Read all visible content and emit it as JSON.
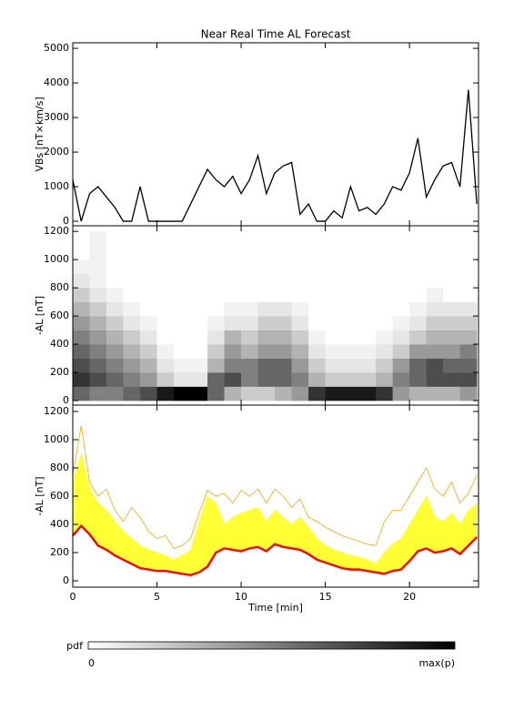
{
  "chart_data": [
    {
      "type": "line",
      "title": "Near Real Time AL Forecast",
      "y_label": "VBs [nT×km/s]",
      "x": [
        0,
        0.5,
        1,
        1.5,
        2,
        2.5,
        3,
        3.5,
        4,
        4.5,
        5,
        5.5,
        6,
        6.5,
        7,
        7.5,
        8,
        8.5,
        9,
        9.5,
        10,
        10.5,
        11,
        11.5,
        12,
        12.5,
        13,
        13.5,
        14,
        14.5,
        15,
        15.5,
        16,
        16.5,
        17,
        17.5,
        18,
        18.5,
        19,
        19.5,
        20,
        20.5,
        21,
        21.5,
        22,
        22.5,
        23,
        23.5,
        24
      ],
      "series": [
        {
          "color": "#000000",
          "values": [
            1200,
            0,
            800,
            1000,
            700,
            400,
            0,
            0,
            1000,
            0,
            0,
            0,
            0,
            0,
            500,
            1000,
            1500,
            1200,
            1000,
            1300,
            800,
            1200,
            1900,
            800,
            1400,
            1600,
            1700,
            200,
            500,
            0,
            0,
            300,
            100,
            1000,
            300,
            400,
            200,
            500,
            1000,
            900,
            1400,
            2400,
            700,
            1200,
            1600,
            1700,
            1000,
            3800,
            500
          ]
        }
      ],
      "xlim": [
        0,
        24.1
      ],
      "ylim": [
        -130,
        5160
      ],
      "yticks": [
        0,
        1000,
        2000,
        3000,
        4000,
        5000
      ]
    },
    {
      "type": "heatmap",
      "y_label": "-AL [nT]",
      "x_bins": [
        0,
        1,
        2,
        3,
        4,
        5,
        6,
        7,
        8,
        9,
        10,
        11,
        12,
        13,
        14,
        15,
        16,
        17,
        18,
        19,
        20,
        21,
        22,
        23,
        24
      ],
      "y_bins": [
        0,
        100,
        200,
        300,
        400,
        500,
        600,
        700,
        800,
        900,
        1000,
        1100,
        1200
      ],
      "values": [
        [
          0.6,
          0.5,
          0.5,
          0.6,
          0.7,
          0.9,
          1.0,
          1.0,
          0.6,
          0.3,
          0.2,
          0.2,
          0.3,
          0.4,
          0.8,
          0.9,
          0.9,
          0.9,
          0.8,
          0.4,
          0.3,
          0.3,
          0.3,
          0.4
        ],
        [
          0.8,
          0.7,
          0.6,
          0.5,
          0.4,
          0.2,
          0.1,
          0.1,
          0.6,
          0.7,
          0.5,
          0.6,
          0.6,
          0.5,
          0.3,
          0.2,
          0.2,
          0.2,
          0.3,
          0.5,
          0.6,
          0.7,
          0.7,
          0.7
        ],
        [
          0.7,
          0.6,
          0.5,
          0.4,
          0.3,
          0.1,
          0.05,
          0.05,
          0.3,
          0.5,
          0.5,
          0.6,
          0.6,
          0.4,
          0.2,
          0.1,
          0.1,
          0.1,
          0.2,
          0.4,
          0.6,
          0.7,
          0.6,
          0.6
        ],
        [
          0.6,
          0.5,
          0.4,
          0.3,
          0.2,
          0.05,
          0,
          0,
          0.2,
          0.4,
          0.3,
          0.4,
          0.4,
          0.3,
          0.1,
          0.05,
          0.05,
          0.05,
          0.1,
          0.2,
          0.4,
          0.4,
          0.4,
          0.5
        ],
        [
          0.5,
          0.4,
          0.3,
          0.2,
          0.1,
          0,
          0,
          0,
          0.1,
          0.3,
          0.2,
          0.3,
          0.3,
          0.2,
          0.05,
          0,
          0,
          0,
          0.05,
          0.1,
          0.2,
          0.3,
          0.3,
          0.3
        ],
        [
          0.4,
          0.3,
          0.2,
          0.1,
          0.05,
          0,
          0,
          0,
          0.05,
          0.1,
          0.1,
          0.2,
          0.2,
          0.1,
          0,
          0,
          0,
          0,
          0,
          0.05,
          0.1,
          0.2,
          0.2,
          0.2
        ],
        [
          0.3,
          0.2,
          0.1,
          0.05,
          0,
          0,
          0,
          0,
          0,
          0.05,
          0.05,
          0.1,
          0.1,
          0.05,
          0,
          0,
          0,
          0,
          0,
          0,
          0.05,
          0.1,
          0.1,
          0.1
        ],
        [
          0.2,
          0.1,
          0.05,
          0,
          0,
          0,
          0,
          0,
          0,
          0,
          0,
          0,
          0,
          0,
          0,
          0,
          0,
          0,
          0,
          0,
          0,
          0.05,
          0,
          0
        ],
        [
          0.1,
          0.05,
          0,
          0,
          0,
          0,
          0,
          0,
          0,
          0,
          0,
          0,
          0,
          0,
          0,
          0,
          0,
          0,
          0,
          0,
          0,
          0,
          0,
          0
        ],
        [
          0.05,
          0.05,
          0,
          0,
          0,
          0,
          0,
          0,
          0,
          0,
          0,
          0,
          0,
          0,
          0,
          0,
          0,
          0,
          0,
          0,
          0,
          0,
          0,
          0
        ],
        [
          0,
          0.05,
          0,
          0,
          0,
          0,
          0,
          0,
          0,
          0,
          0,
          0,
          0,
          0,
          0,
          0,
          0,
          0,
          0,
          0,
          0,
          0,
          0,
          0
        ],
        [
          0,
          0.05,
          0,
          0,
          0,
          0,
          0,
          0,
          0,
          0,
          0,
          0,
          0,
          0,
          0,
          0,
          0,
          0,
          0,
          0,
          0,
          0,
          0,
          0
        ]
      ],
      "xlim": [
        0,
        24.1
      ],
      "ylim": [
        -32,
        1240
      ],
      "yticks": [
        0,
        200,
        400,
        600,
        800,
        1000,
        1200
      ],
      "colorbar_label": "pdf",
      "colorbar_ticks": [
        0,
        {
          "value": 1,
          "label": "max(p)"
        }
      ]
    },
    {
      "type": "band",
      "y_label": "-AL [nT]",
      "x_label": "Time [min]",
      "x": [
        0,
        0.5,
        1,
        1.5,
        2,
        2.5,
        3,
        3.5,
        4,
        4.5,
        5,
        5.5,
        6,
        6.5,
        7,
        7.5,
        8,
        8.5,
        9,
        9.5,
        10,
        10.5,
        11,
        11.5,
        12,
        12.5,
        13,
        13.5,
        14,
        14.5,
        15,
        15.5,
        16,
        16.5,
        17,
        17.5,
        18,
        18.5,
        19,
        19.5,
        20,
        20.5,
        21,
        21.5,
        22,
        22.5,
        23,
        23.5,
        24
      ],
      "series": [
        {
          "color": "#ffa500",
          "style": "line",
          "values": [
            750,
            1100,
            700,
            600,
            650,
            500,
            420,
            520,
            450,
            350,
            300,
            320,
            230,
            250,
            300,
            480,
            640,
            600,
            620,
            550,
            640,
            600,
            650,
            550,
            650,
            600,
            520,
            580,
            450,
            420,
            380,
            350,
            320,
            300,
            280,
            260,
            250,
            420,
            500,
            500,
            600,
            700,
            800,
            650,
            600,
            700,
            550,
            620,
            750
          ]
        },
        {
          "color": "#ffff33",
          "style": "area",
          "values": [
            700,
            900,
            650,
            550,
            500,
            420,
            350,
            300,
            250,
            220,
            200,
            180,
            150,
            180,
            220,
            420,
            600,
            550,
            400,
            450,
            480,
            500,
            520,
            420,
            500,
            450,
            400,
            450,
            380,
            300,
            250,
            220,
            200,
            180,
            170,
            150,
            120,
            200,
            260,
            300,
            400,
            500,
            600,
            450,
            420,
            480,
            400,
            500,
            550
          ]
        },
        {
          "color": "#ff0000",
          "style": "floor",
          "values": [
            320,
            390,
            330,
            250,
            220,
            180,
            150,
            120,
            90,
            80,
            70,
            70,
            60,
            50,
            40,
            60,
            100,
            200,
            230,
            220,
            210,
            230,
            240,
            210,
            260,
            240,
            230,
            220,
            190,
            150,
            130,
            110,
            90,
            80,
            80,
            70,
            60,
            50,
            70,
            80,
            140,
            210,
            230,
            200,
            210,
            230,
            190,
            250,
            310
          ]
        }
      ],
      "xlim": [
        0,
        24.1
      ],
      "ylim": [
        -45,
        1245
      ],
      "yticks": [
        0,
        200,
        400,
        600,
        800,
        1000,
        1200
      ],
      "xticks": [
        0,
        5,
        10,
        15,
        20
      ]
    }
  ]
}
